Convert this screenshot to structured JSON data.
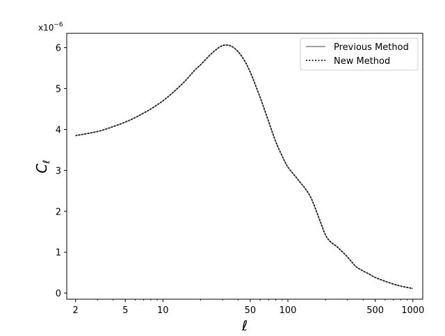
{
  "chart_data": {
    "type": "line",
    "xlabel": "ℓ",
    "ylabel": "C",
    "ylabel_subscript": "ℓ",
    "x_scale": "log",
    "xlim": [
      1.7,
      1200
    ],
    "ylim": [
      -0.15,
      6.35
    ],
    "y_multiplier_label": "x10",
    "y_multiplier_exponent": "−6",
    "x_ticks": [
      2,
      5,
      10,
      50,
      100,
      500,
      1000
    ],
    "x_tick_labels": [
      "2",
      "5",
      "10",
      "50",
      "100",
      "500",
      "1000"
    ],
    "y_ticks": [
      0,
      1,
      2,
      3,
      4,
      5,
      6
    ],
    "y_tick_labels": [
      "0",
      "1",
      "2",
      "3",
      "4",
      "5",
      "6"
    ],
    "grid": false,
    "legend_position": "top-right",
    "series": [
      {
        "name": "Previous Method",
        "color": "#808080",
        "line_style": "solid",
        "x": [
          2,
          3,
          4,
          5,
          6,
          7,
          8,
          10,
          12,
          15,
          18,
          20,
          25,
          30,
          35,
          40,
          45,
          50,
          60,
          70,
          80,
          90,
          100,
          120,
          150,
          180,
          200,
          220,
          250,
          300,
          350,
          400,
          450,
          500,
          600,
          700,
          800,
          1000
        ],
        "y": [
          3.85,
          3.95,
          4.07,
          4.18,
          4.29,
          4.4,
          4.5,
          4.7,
          4.9,
          5.18,
          5.45,
          5.58,
          5.88,
          6.05,
          6.04,
          5.9,
          5.68,
          5.4,
          4.78,
          4.2,
          3.7,
          3.35,
          3.08,
          2.78,
          2.38,
          1.78,
          1.42,
          1.25,
          1.12,
          0.88,
          0.65,
          0.54,
          0.46,
          0.38,
          0.29,
          0.22,
          0.17,
          0.11
        ]
      },
      {
        "name": "New Method",
        "color": "#000000",
        "line_style": "dotted",
        "x": [
          2,
          3,
          4,
          5,
          6,
          7,
          8,
          10,
          12,
          15,
          18,
          20,
          25,
          30,
          35,
          40,
          45,
          50,
          60,
          70,
          80,
          90,
          100,
          120,
          150,
          180,
          200,
          220,
          250,
          300,
          350,
          400,
          450,
          500,
          600,
          700,
          800,
          1000
        ],
        "y": [
          3.85,
          3.95,
          4.07,
          4.18,
          4.29,
          4.4,
          4.5,
          4.7,
          4.9,
          5.18,
          5.45,
          5.58,
          5.88,
          6.05,
          6.04,
          5.9,
          5.68,
          5.4,
          4.78,
          4.2,
          3.7,
          3.35,
          3.08,
          2.78,
          2.38,
          1.78,
          1.42,
          1.25,
          1.12,
          0.88,
          0.65,
          0.54,
          0.46,
          0.38,
          0.29,
          0.22,
          0.17,
          0.11
        ]
      }
    ]
  }
}
